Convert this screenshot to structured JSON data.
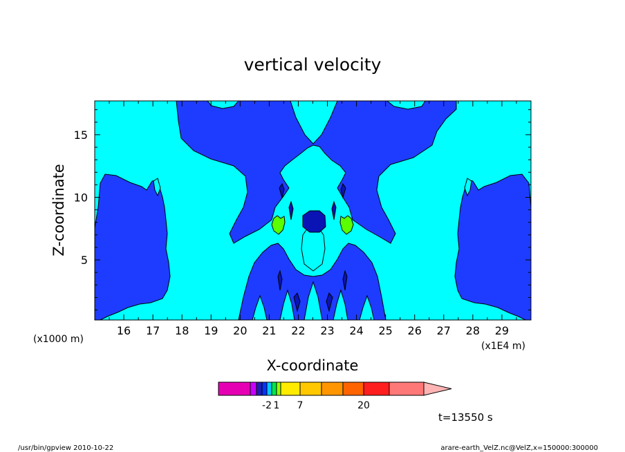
{
  "chart_data": {
    "type": "contour",
    "title": "vertical velocity",
    "xlabel": "X-coordinate",
    "ylabel": "Z-coordinate",
    "x_unit_label": "(x1E4 m)",
    "y_unit_label": "(x1000 m)",
    "xlim": [
      15,
      30
    ],
    "ylim": [
      0.2,
      17.7
    ],
    "x_ticks": [
      16,
      17,
      18,
      19,
      20,
      21,
      22,
      23,
      24,
      25,
      26,
      27,
      28,
      29
    ],
    "x_tick_labels": [
      "16",
      "17",
      "18",
      "19",
      "20",
      "21",
      "22",
      "23",
      "24",
      "25",
      "26",
      "27",
      "28",
      "29"
    ],
    "y_ticks": [
      5,
      10,
      15
    ],
    "y_tick_labels": [
      "5",
      "10",
      "15"
    ],
    "colors": {
      "background": "#00ffff",
      "blue_region": "#1e3cff",
      "navy_region": "#0a14b4",
      "green_region": "#5aff00"
    },
    "colorbar": {
      "colors": [
        "#e600b4",
        "#c800ff",
        "#1e1eb4",
        "#0a32ff",
        "#00c8ff",
        "#00e650",
        "#96ff00",
        "#ffeb00",
        "#ffc800",
        "#ff9600",
        "#ff6400",
        "#ff1e1e",
        "#ff7878",
        "#ffb4b4"
      ],
      "labels": [
        {
          "text": "-2",
          "index": 4
        },
        {
          "text": "1",
          "index": 6
        },
        {
          "text": "7",
          "index": 8
        },
        {
          "text": "20",
          "index": 11
        }
      ]
    },
    "time_label": "t=13550  s"
  },
  "footer": {
    "left": "/usr/bin/gpview   2010-10-22",
    "right": "arare-earth_VelZ.nc@VelZ,x=150000:300000"
  }
}
